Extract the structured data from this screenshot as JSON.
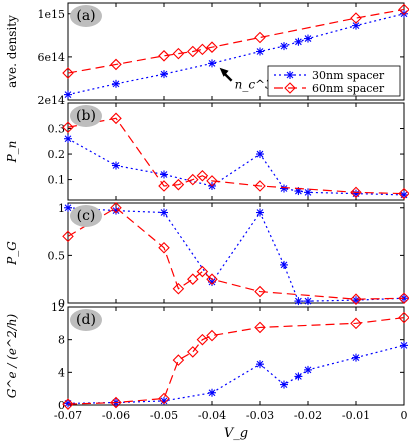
{
  "chart_data": {
    "type": "line",
    "xlabel": "V_g",
    "x_ticks": [
      -0.07,
      -0.06,
      -0.05,
      -0.04,
      -0.03,
      -0.02,
      -0.01,
      0
    ],
    "x_tick_labels": [
      "-0.07",
      "-0.06",
      "-0.05",
      "-0.04",
      "-0.03",
      "-0.02",
      "-0.01",
      "0"
    ],
    "xlim": [
      -0.07,
      0
    ],
    "legend": {
      "placement": "inside panel (a), lower-right",
      "entries": [
        "30nm spacer",
        "60nm spacer"
      ]
    },
    "series_colors": {
      "30nm spacer": "#0000ff",
      "60nm spacer": "#ff0000"
    },
    "panels": [
      {
        "label": "(a)",
        "ylabel": "ave. density",
        "ylim": [
          200000000000000.0,
          1100000000000000.0
        ],
        "y_ticks": [
          200000000000000.0,
          600000000000000.0,
          1000000000000000.0
        ],
        "y_tick_labels": [
          "2e14",
          "6e14",
          "1e15"
        ],
        "annotation": "n_c^30",
        "annotation_x": -0.038,
        "series": [
          {
            "name": "30nm spacer",
            "x": [
              -0.07,
              -0.06,
              -0.05,
              -0.04,
              -0.03,
              -0.025,
              -0.022,
              -0.02,
              -0.01,
              0
            ],
            "y": [
              250000000000000.0,
              350000000000000.0,
              440000000000000.0,
              540000000000000.0,
              650000000000000.0,
              700000000000000.0,
              740000000000000.0,
              770000000000000.0,
              890000000000000.0,
              1000000000000000.0
            ]
          },
          {
            "name": "60nm spacer",
            "x": [
              -0.07,
              -0.06,
              -0.05,
              -0.047,
              -0.044,
              -0.042,
              -0.04,
              -0.03,
              -0.01,
              0
            ],
            "y": [
              450000000000000.0,
              530000000000000.0,
              610000000000000.0,
              630000000000000.0,
              650000000000000.0,
              670000000000000.0,
              690000000000000.0,
              780000000000000.0,
              960000000000000.0,
              1040000000000000.0
            ]
          }
        ]
      },
      {
        "label": "(b)",
        "ylabel": "P_n",
        "ylim": [
          0.02,
          0.4
        ],
        "y_ticks": [
          0.1,
          0.2,
          0.3
        ],
        "y_tick_labels": [
          "0.1",
          "0.2",
          "0.3"
        ],
        "series": [
          {
            "name": "30nm spacer",
            "x": [
              -0.07,
              -0.06,
              -0.05,
              -0.04,
              -0.03,
              -0.025,
              -0.022,
              -0.02,
              -0.01,
              0
            ],
            "y": [
              0.26,
              0.155,
              0.12,
              0.075,
              0.2,
              0.065,
              0.055,
              0.05,
              0.045,
              0.04
            ]
          },
          {
            "name": "60nm spacer",
            "x": [
              -0.07,
              -0.06,
              -0.05,
              -0.047,
              -0.044,
              -0.042,
              -0.04,
              -0.03,
              -0.01,
              0
            ],
            "y": [
              0.305,
              0.34,
              0.075,
              0.08,
              0.1,
              0.115,
              0.095,
              0.075,
              0.05,
              0.045
            ]
          }
        ]
      },
      {
        "label": "(c)",
        "ylabel": "P_G",
        "ylim": [
          0,
          1.05
        ],
        "y_ticks": [
          0,
          0.5,
          1
        ],
        "y_tick_labels": [
          "0",
          "0.5",
          "1"
        ],
        "series": [
          {
            "name": "30nm spacer",
            "x": [
              -0.07,
              -0.06,
              -0.05,
              -0.04,
              -0.03,
              -0.025,
              -0.022,
              -0.02,
              -0.01,
              0
            ],
            "y": [
              1.0,
              0.97,
              0.95,
              0.22,
              0.95,
              0.4,
              0.02,
              0.02,
              0.03,
              0.05
            ]
          },
          {
            "name": "60nm spacer",
            "x": [
              -0.07,
              -0.06,
              -0.05,
              -0.047,
              -0.044,
              -0.042,
              -0.04,
              -0.03,
              -0.01,
              0
            ],
            "y": [
              0.7,
              1.0,
              0.58,
              0.15,
              0.25,
              0.33,
              0.25,
              0.12,
              0.04,
              0.05
            ]
          }
        ]
      },
      {
        "label": "(d)",
        "ylabel": "G^e / (e^2/h)",
        "ylim": [
          0,
          12
        ],
        "y_ticks": [
          0,
          4,
          8,
          12
        ],
        "y_tick_labels": [
          "0",
          "4",
          "8",
          "12"
        ],
        "series": [
          {
            "name": "30nm spacer",
            "x": [
              -0.07,
              -0.06,
              -0.05,
              -0.04,
              -0.03,
              -0.025,
              -0.022,
              -0.02,
              -0.01,
              0
            ],
            "y": [
              0.2,
              0.3,
              0.5,
              1.5,
              5.0,
              2.5,
              3.5,
              4.3,
              5.8,
              7.3
            ]
          },
          {
            "name": "60nm spacer",
            "x": [
              -0.07,
              -0.06,
              -0.05,
              -0.047,
              -0.044,
              -0.042,
              -0.04,
              -0.03,
              -0.01,
              0
            ],
            "y": [
              0.1,
              0.3,
              0.8,
              5.5,
              6.5,
              8.0,
              8.5,
              9.5,
              10.0,
              10.7
            ]
          }
        ]
      }
    ]
  }
}
